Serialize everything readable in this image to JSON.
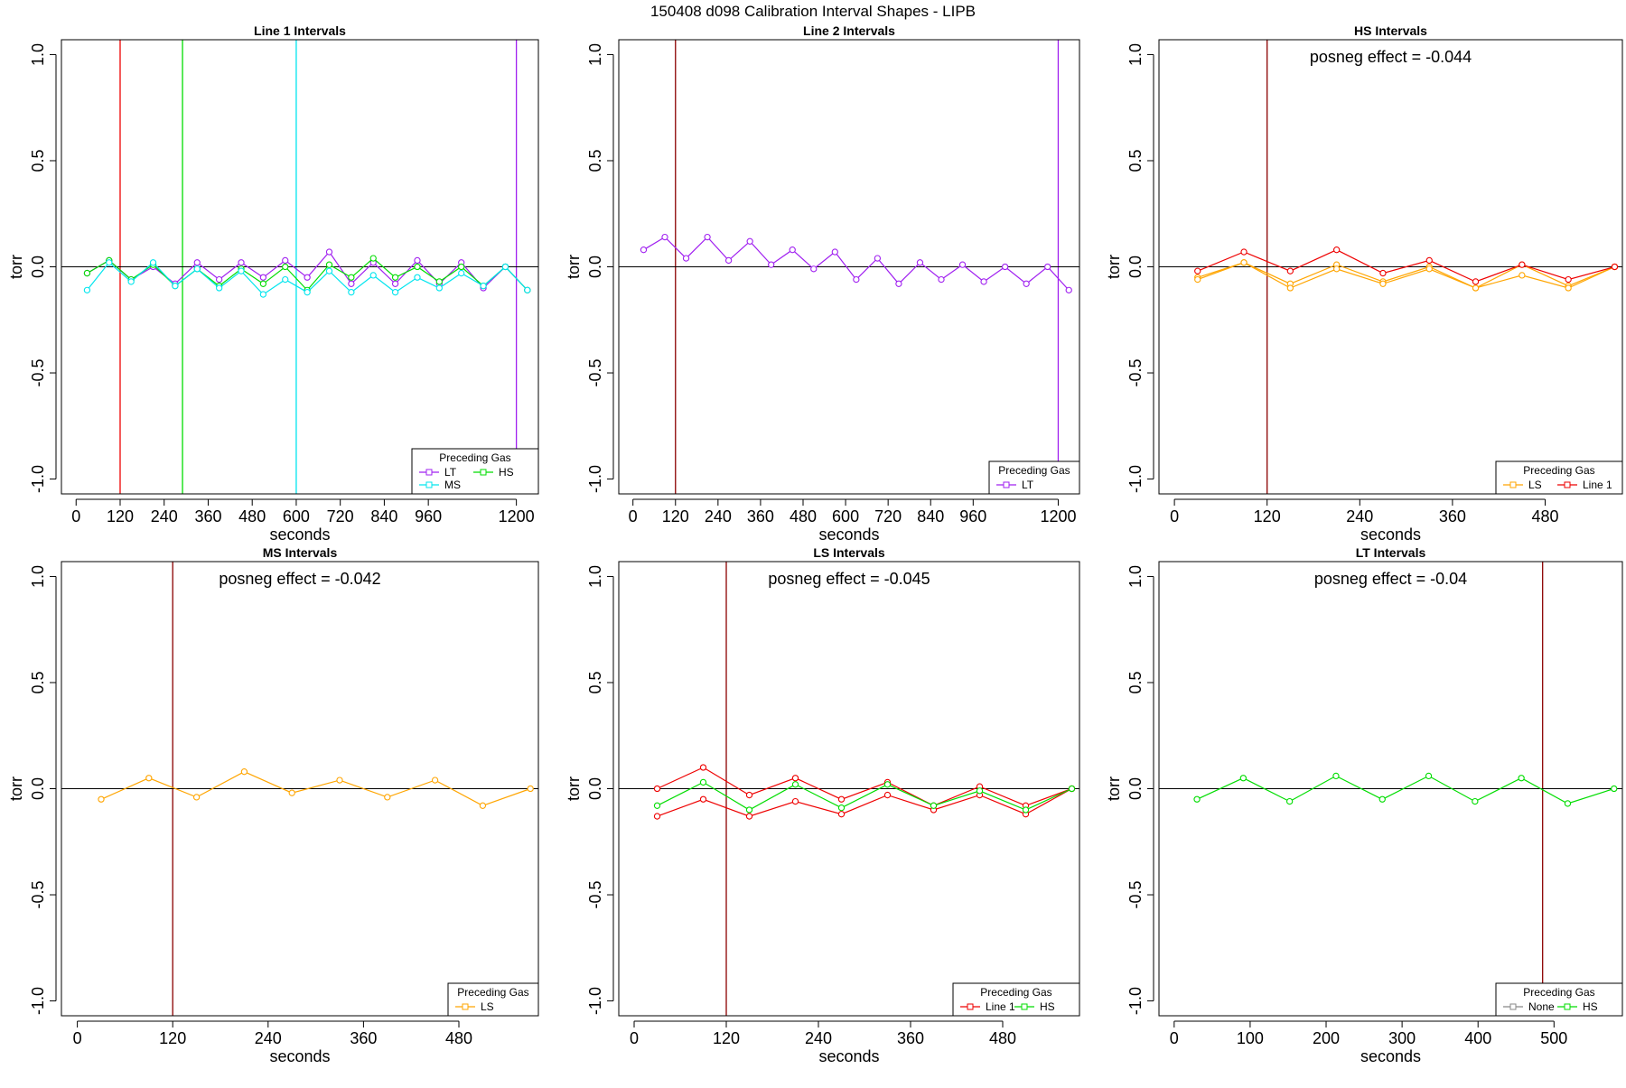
{
  "title": "150408   d098   Calibration Interval Shapes - LIPB",
  "colors": {
    "LT": "#a020f0",
    "HS": "#00dd00",
    "MS": "#00e5ee",
    "LS": "#ffa500",
    "Line 1": "#ee0000",
    "None": "#888888",
    "vline": "#8b0000",
    "hline": "#000000"
  },
  "chart_data": [
    {
      "type": "line",
      "title": "Line 1 Intervals",
      "xlabel": "seconds",
      "ylabel": "torr",
      "xlim": [
        -40,
        1260
      ],
      "ylim": [
        -1.07,
        1.07
      ],
      "xticks": [
        0,
        120,
        240,
        360,
        480,
        600,
        720,
        840,
        960,
        1200
      ],
      "yticks": [
        -1.0,
        -0.5,
        0.0,
        0.5,
        1.0
      ],
      "ytick_labels": [
        "-1.0",
        "-0.5",
        "0.0",
        "0.5",
        "1.0"
      ],
      "hline": 0,
      "vlines": [
        {
          "x": 120,
          "color": "#ee0000"
        },
        {
          "x": 290,
          "color": "#00dd00"
        },
        {
          "x": 600,
          "color": "#00e5ee"
        },
        {
          "x": 1200,
          "color": "#a020f0"
        }
      ],
      "legend": {
        "title": "Preceding Gas",
        "position": "bottom-right",
        "entries": [
          "LT",
          "HS",
          "MS"
        ],
        "columns": 2
      },
      "series": [
        {
          "name": "LT",
          "color": "#a020f0",
          "x": [
            30,
            90,
            150,
            210,
            270,
            330,
            390,
            450,
            510,
            570,
            630,
            690,
            750,
            810,
            870,
            930,
            990,
            1050,
            1110,
            1170,
            1230
          ],
          "y": [
            -0.03,
            0.03,
            -0.06,
            0.0,
            -0.08,
            0.02,
            -0.06,
            0.02,
            -0.05,
            0.03,
            -0.05,
            0.07,
            -0.08,
            0.02,
            -0.08,
            0.03,
            -0.08,
            0.02,
            -0.1,
            0.0,
            -0.11
          ]
        },
        {
          "name": "HS",
          "color": "#00dd00",
          "x": [
            30,
            90,
            150,
            210,
            270,
            330,
            390,
            450,
            510,
            570,
            630,
            690,
            750,
            810,
            870,
            930,
            990,
            1050,
            1110,
            1170,
            1230
          ],
          "y": [
            -0.03,
            0.03,
            -0.06,
            0.01,
            -0.09,
            -0.01,
            -0.09,
            -0.01,
            -0.08,
            0.0,
            -0.11,
            0.01,
            -0.05,
            0.04,
            -0.05,
            0.0,
            -0.07,
            0.0,
            -0.09,
            0.0,
            -0.11
          ]
        },
        {
          "name": "MS",
          "color": "#00e5ee",
          "x": [
            30,
            90,
            150,
            210,
            270,
            330,
            390,
            450,
            510,
            570,
            630,
            690,
            750,
            810,
            870,
            930,
            990,
            1050,
            1110,
            1170,
            1230
          ],
          "y": [
            -0.11,
            0.02,
            -0.07,
            0.02,
            -0.09,
            -0.01,
            -0.1,
            -0.02,
            -0.13,
            -0.06,
            -0.12,
            -0.02,
            -0.12,
            -0.04,
            -0.12,
            -0.05,
            -0.1,
            -0.03,
            -0.09,
            0.0,
            -0.11
          ]
        }
      ]
    },
    {
      "type": "line",
      "title": "Line 2 Intervals",
      "xlabel": "seconds",
      "ylabel": "torr",
      "xlim": [
        -40,
        1260
      ],
      "ylim": [
        -1.07,
        1.07
      ],
      "xticks": [
        0,
        120,
        240,
        360,
        480,
        600,
        720,
        840,
        960,
        1200
      ],
      "yticks": [
        -1.0,
        -0.5,
        0.0,
        0.5,
        1.0
      ],
      "ytick_labels": [
        "-1.0",
        "-0.5",
        "0.0",
        "0.5",
        "1.0"
      ],
      "hline": 0,
      "vlines": [
        {
          "x": 120,
          "color": "#8b0000"
        },
        {
          "x": 1200,
          "color": "#a020f0"
        }
      ],
      "legend": {
        "title": "Preceding Gas",
        "position": "bottom-right",
        "entries": [
          "LT"
        ],
        "columns": 1
      },
      "series": [
        {
          "name": "LT",
          "color": "#a020f0",
          "x": [
            30,
            90,
            150,
            210,
            270,
            330,
            390,
            450,
            510,
            570,
            630,
            690,
            750,
            810,
            870,
            930,
            990,
            1050,
            1110,
            1170,
            1230
          ],
          "y": [
            0.08,
            0.14,
            0.04,
            0.14,
            0.03,
            0.12,
            0.01,
            0.08,
            -0.01,
            0.07,
            -0.06,
            0.04,
            -0.08,
            0.02,
            -0.06,
            0.01,
            -0.07,
            0.0,
            -0.08,
            0.0,
            -0.11
          ]
        }
      ]
    },
    {
      "type": "line",
      "title": "HS Intervals",
      "xlabel": "seconds",
      "ylabel": "torr",
      "xlim": [
        -20,
        580
      ],
      "ylim": [
        -1.07,
        1.07
      ],
      "xticks": [
        0,
        120,
        240,
        360,
        480
      ],
      "yticks": [
        -1.0,
        -0.5,
        0.0,
        0.5,
        1.0
      ],
      "ytick_labels": [
        "-1.0",
        "-0.5",
        "0.0",
        "0.5",
        "1.0"
      ],
      "hline": 0,
      "vlines": [
        {
          "x": 120,
          "color": "#8b0000"
        }
      ],
      "annotation": "posneg effect = -0.044",
      "legend": {
        "title": "Preceding Gas",
        "position": "bottom-right",
        "entries": [
          "LS",
          "Line 1"
        ],
        "columns": 2
      },
      "series": [
        {
          "name": "LS",
          "color": "#ffa500",
          "x": [
            30,
            90,
            150,
            210,
            270,
            330,
            390,
            450,
            510,
            570
          ],
          "y": [
            -0.05,
            0.02,
            -0.08,
            0.01,
            -0.07,
            0.0,
            -0.1,
            0.01,
            -0.09,
            0.0
          ]
        },
        {
          "name": "LS",
          "color": "#ffa500",
          "x": [
            30,
            90,
            150,
            210,
            270,
            330,
            390,
            450,
            510,
            570
          ],
          "y": [
            -0.06,
            0.02,
            -0.1,
            -0.01,
            -0.08,
            -0.01,
            -0.1,
            -0.04,
            -0.1,
            0.0
          ]
        },
        {
          "name": "Line 1",
          "color": "#ee0000",
          "x": [
            30,
            90,
            150,
            210,
            270,
            330,
            390,
            450,
            510,
            570
          ],
          "y": [
            -0.02,
            0.07,
            -0.02,
            0.08,
            -0.03,
            0.03,
            -0.07,
            0.01,
            -0.06,
            0.0
          ]
        }
      ]
    },
    {
      "type": "line",
      "title": "MS Intervals",
      "xlabel": "seconds",
      "ylabel": "torr",
      "xlim": [
        -20,
        580
      ],
      "ylim": [
        -1.07,
        1.07
      ],
      "xticks": [
        0,
        120,
        240,
        360,
        480
      ],
      "yticks": [
        -1.0,
        -0.5,
        0.0,
        0.5,
        1.0
      ],
      "ytick_labels": [
        "-1.0",
        "-0.5",
        "0.0",
        "0.5",
        "1.0"
      ],
      "hline": 0,
      "vlines": [
        {
          "x": 120,
          "color": "#8b0000"
        }
      ],
      "annotation": "posneg effect = -0.042",
      "legend": {
        "title": "Preceding Gas",
        "position": "bottom-right",
        "entries": [
          "LS"
        ],
        "columns": 1
      },
      "series": [
        {
          "name": "LS",
          "color": "#ffa500",
          "x": [
            30,
            90,
            150,
            210,
            270,
            330,
            390,
            450,
            510,
            570
          ],
          "y": [
            -0.05,
            0.05,
            -0.04,
            0.08,
            -0.02,
            0.04,
            -0.04,
            0.04,
            -0.08,
            0.0
          ]
        }
      ]
    },
    {
      "type": "line",
      "title": "LS Intervals",
      "xlabel": "seconds",
      "ylabel": "torr",
      "xlim": [
        -20,
        580
      ],
      "ylim": [
        -1.07,
        1.07
      ],
      "xticks": [
        0,
        120,
        240,
        360,
        480
      ],
      "yticks": [
        -1.0,
        -0.5,
        0.0,
        0.5,
        1.0
      ],
      "ytick_labels": [
        "-1.0",
        "-0.5",
        "0.0",
        "0.5",
        "1.0"
      ],
      "hline": 0,
      "vlines": [
        {
          "x": 120,
          "color": "#8b0000"
        }
      ],
      "annotation": "posneg effect = -0.045",
      "legend": {
        "title": "Preceding Gas",
        "position": "bottom-right",
        "entries": [
          "Line 1",
          "HS"
        ],
        "columns": 2
      },
      "series": [
        {
          "name": "Line 1",
          "color": "#ee0000",
          "x": [
            30,
            90,
            150,
            210,
            270,
            330,
            390,
            450,
            510,
            570
          ],
          "y": [
            0.0,
            0.1,
            -0.03,
            0.05,
            -0.05,
            0.03,
            -0.08,
            0.01,
            -0.08,
            0.0
          ]
        },
        {
          "name": "Line 1",
          "color": "#ee0000",
          "x": [
            30,
            90,
            150,
            210,
            270,
            330,
            390,
            450,
            510,
            570
          ],
          "y": [
            -0.13,
            -0.05,
            -0.13,
            -0.06,
            -0.12,
            -0.03,
            -0.1,
            -0.03,
            -0.12,
            0.0
          ]
        },
        {
          "name": "HS",
          "color": "#00dd00",
          "x": [
            30,
            90,
            150,
            210,
            270,
            330,
            390,
            450,
            510,
            570
          ],
          "y": [
            -0.08,
            0.03,
            -0.1,
            0.02,
            -0.09,
            0.02,
            -0.08,
            -0.01,
            -0.1,
            0.0
          ]
        }
      ]
    },
    {
      "type": "line",
      "title": "LT Intervals",
      "xlabel": "seconds",
      "ylabel": "torr",
      "xlim": [
        -20,
        590
      ],
      "ylim": [
        -1.07,
        1.07
      ],
      "xticks": [
        0,
        100,
        200,
        300,
        400,
        500
      ],
      "yticks": [
        -1.0,
        -0.5,
        0.0,
        0.5,
        1.0
      ],
      "ytick_labels": [
        "-1.0",
        "-0.5",
        "0.0",
        "0.5",
        "1.0"
      ],
      "hline": 0,
      "vlines": [
        {
          "x": 485,
          "color": "#8b0000"
        }
      ],
      "annotation": "posneg effect = -0.04",
      "legend": {
        "title": "Preceding Gas",
        "position": "bottom-right",
        "entries": [
          "None",
          "HS"
        ],
        "columns": 2
      },
      "series": [
        {
          "name": "HS",
          "color": "#00dd00",
          "x": [
            30,
            91,
            152,
            213,
            274,
            335,
            396,
            457,
            518,
            579
          ],
          "y": [
            -0.05,
            0.05,
            -0.06,
            0.06,
            -0.05,
            0.06,
            -0.06,
            0.05,
            -0.07,
            0.0
          ]
        }
      ]
    }
  ]
}
